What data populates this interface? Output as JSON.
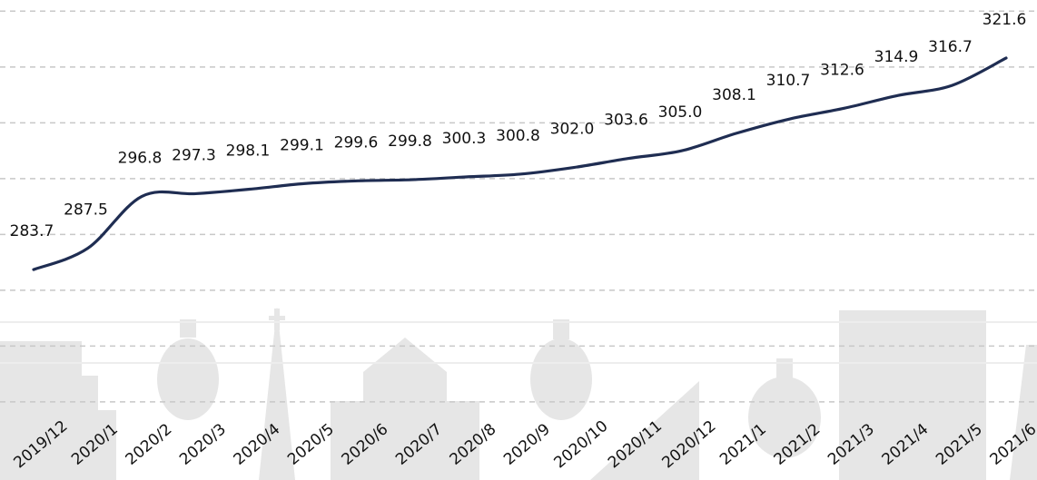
{
  "chart_data": {
    "type": "line",
    "categories": [
      "2019/12",
      "2020/1",
      "2020/2",
      "2020/3",
      "2020/4",
      "2020/5",
      "2020/6",
      "2020/7",
      "2020/8",
      "2020/9",
      "2020/10",
      "2020/11",
      "2020/12",
      "2021/1",
      "2021/2",
      "2021/3",
      "2021/4",
      "2021/5",
      "2021/6"
    ],
    "series": [
      {
        "color": "#1f2d52",
        "values": [
          283.7,
          287.5,
          296.8,
          297.3,
          298.1,
          299.1,
          299.6,
          299.8,
          300.3,
          300.8,
          302.0,
          303.6,
          305.0,
          308.1,
          310.7,
          312.6,
          314.9,
          316.7,
          321.6
        ],
        "value_labels": [
          "283.7",
          "287.5",
          "296.8",
          "297.3",
          "298.1",
          "299.1",
          "299.6",
          "299.8",
          "300.3",
          "300.8",
          "302.0",
          "303.6",
          "305.0",
          "308.1",
          "310.7",
          "312.6",
          "314.9",
          "316.7",
          "321.6"
        ]
      }
    ],
    "ylim": [
      246,
      332
    ],
    "yticks": [
      260,
      270,
      280,
      290,
      300,
      310,
      320,
      330
    ],
    "grid": true
  }
}
